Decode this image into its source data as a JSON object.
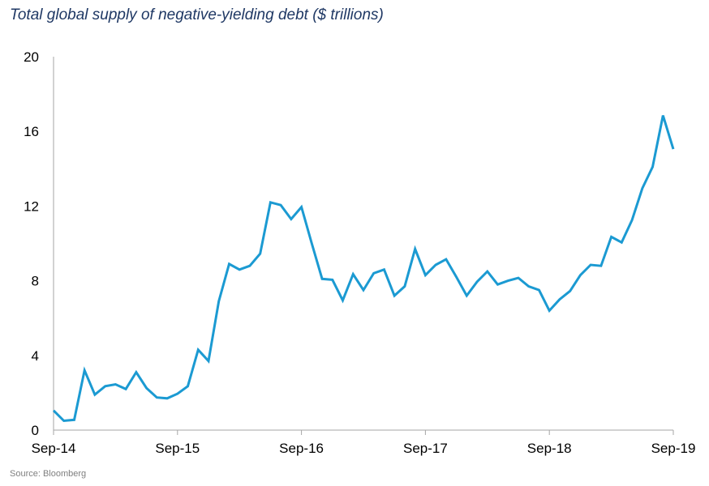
{
  "chart_data": {
    "type": "line",
    "title": "Total global supply of negative-yielding debt ($ trillions)",
    "xlabel": "",
    "ylabel": "",
    "ylim": [
      0,
      20
    ],
    "yticks": [
      "0",
      "4",
      "8",
      "12",
      "16",
      "20"
    ],
    "ytick_values": [
      0,
      4,
      8,
      12,
      16,
      20
    ],
    "xticks": [
      "Sep-14",
      "Sep-15",
      "Sep-16",
      "Sep-17",
      "Sep-18",
      "Sep-19"
    ],
    "grid": false,
    "legend": "none",
    "line_color": "#1b9ad2",
    "axis_color": "#a6a6a6",
    "x": [
      "2014-09",
      "2014-10",
      "2014-11",
      "2014-12",
      "2015-01",
      "2015-02",
      "2015-03",
      "2015-04",
      "2015-05",
      "2015-06",
      "2015-07",
      "2015-08",
      "2015-09",
      "2015-10",
      "2015-11",
      "2015-12",
      "2016-01",
      "2016-02",
      "2016-03",
      "2016-04",
      "2016-05",
      "2016-06",
      "2016-07",
      "2016-08",
      "2016-09",
      "2016-10",
      "2016-11",
      "2016-12",
      "2017-01",
      "2017-02",
      "2017-03",
      "2017-04",
      "2017-05",
      "2017-06",
      "2017-07",
      "2017-08",
      "2017-09",
      "2017-10",
      "2017-11",
      "2017-12",
      "2018-01",
      "2018-02",
      "2018-03",
      "2018-04",
      "2018-05",
      "2018-06",
      "2018-07",
      "2018-08",
      "2018-09",
      "2018-10",
      "2018-11",
      "2018-12",
      "2019-01",
      "2019-02",
      "2019-03",
      "2019-04",
      "2019-05",
      "2019-06",
      "2019-07",
      "2019-08",
      "2019-09"
    ],
    "values": [
      1.05,
      0.5,
      0.55,
      3.2,
      1.9,
      2.35,
      2.45,
      2.2,
      3.1,
      2.25,
      1.75,
      1.7,
      1.95,
      2.35,
      4.3,
      3.7,
      6.9,
      8.9,
      8.6,
      8.8,
      9.45,
      12.2,
      12.05,
      11.3,
      11.95,
      10.0,
      8.1,
      8.05,
      6.95,
      8.35,
      7.5,
      8.4,
      8.6,
      7.2,
      7.7,
      9.7,
      8.3,
      8.85,
      9.15,
      8.2,
      7.2,
      7.95,
      8.5,
      7.8,
      8.0,
      8.15,
      7.7,
      7.5,
      6.4,
      7.0,
      7.45,
      8.3,
      8.85,
      8.8,
      10.35,
      10.05,
      11.25,
      12.95,
      14.1,
      16.85,
      15.05
    ]
  },
  "source": "Source: Bloomberg"
}
